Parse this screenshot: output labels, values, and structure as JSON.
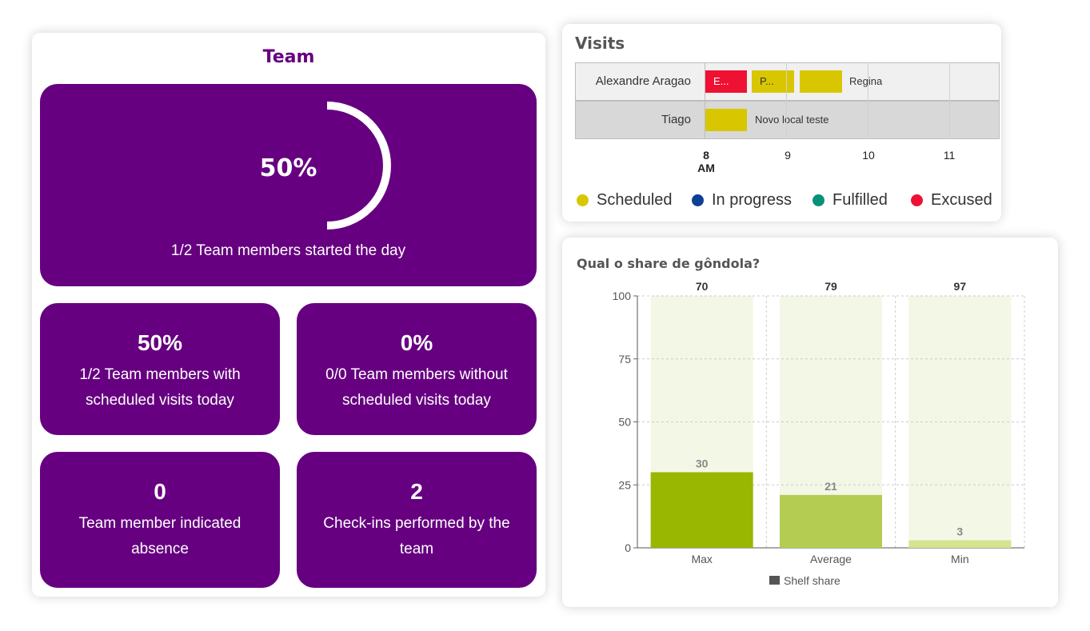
{
  "team": {
    "title": "Team",
    "main": {
      "percent": 50,
      "percent_label": "50%",
      "caption": "1/2 Team members started the day"
    },
    "tiles": [
      {
        "value": "50%",
        "label": "1/2 Team members with scheduled visits today"
      },
      {
        "value": "0%",
        "label": "0/0 Team members without scheduled visits today"
      },
      {
        "value": "0",
        "label": "Team member indicated absence"
      },
      {
        "value": "2",
        "label": "Check-ins performed by the team"
      }
    ],
    "colors": {
      "tile": "#660080",
      "title": "#660080"
    }
  },
  "visits": {
    "title": "Visits",
    "rows": [
      {
        "name": "Alexandre Aragao",
        "bars": [
          {
            "label": "E...",
            "status": "excused"
          },
          {
            "label": "P...",
            "status": "scheduled"
          },
          {
            "label": "",
            "status": "scheduled"
          }
        ],
        "trailing_label": "Regina"
      },
      {
        "name": "Tiago",
        "bars": [
          {
            "label": "",
            "status": "scheduled"
          }
        ],
        "trailing_label": "Novo local teste"
      }
    ],
    "axis": {
      "ticks": [
        "8",
        "9",
        "10",
        "11"
      ],
      "first_suffix": "AM"
    },
    "legend": [
      {
        "label": "Scheduled",
        "color": "#d8c700"
      },
      {
        "label": "In progress",
        "color": "#0d3f96"
      },
      {
        "label": "Fulfilled",
        "color": "#07917a"
      },
      {
        "label": "Excused",
        "color": "#ee1133"
      }
    ]
  },
  "share": {
    "title": "Qual o share de gôndola?",
    "chart_data": {
      "type": "bar",
      "categories": [
        "Max",
        "Average",
        "Min"
      ],
      "series": [
        {
          "name": "Shelf share",
          "values": [
            30,
            21,
            3
          ],
          "colors": [
            "#99b600",
            "#b5cc52",
            "#d6e38f"
          ]
        }
      ],
      "top_labels": [
        70,
        79,
        97
      ],
      "ylim": [
        0,
        100
      ],
      "yticks": [
        0,
        25,
        50,
        75,
        100
      ],
      "grid": true,
      "background_color": "#f3f7e6",
      "legend": "bottom-center"
    }
  }
}
